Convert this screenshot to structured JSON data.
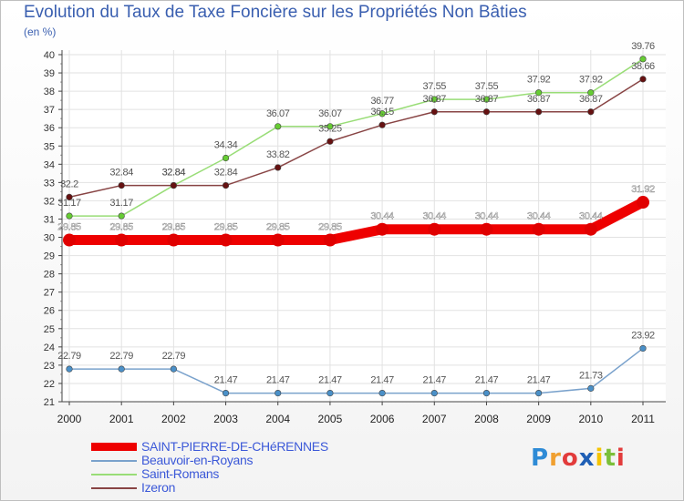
{
  "title": "Evolution du Taux de Taxe Foncière sur les Propriétés Non Bâties",
  "unit": "(en %)",
  "logo": "Proxiti",
  "chart_data": {
    "type": "line",
    "title": "Evolution du Taux de Taxe Foncière sur les Propriétés Non Bâties",
    "ylabel": "(en %)",
    "xlabel": "",
    "x": [
      "2000",
      "2001",
      "2002",
      "2003",
      "2004",
      "2005",
      "2006",
      "2007",
      "2008",
      "2009",
      "2010",
      "2011"
    ],
    "ylim": [
      21,
      40
    ],
    "yticks": [
      21,
      22,
      23,
      24,
      25,
      26,
      27,
      28,
      29,
      30,
      31,
      32,
      33,
      34,
      35,
      36,
      37,
      38,
      39,
      40
    ],
    "grid": true,
    "legend_position": "bottom-left",
    "series": [
      {
        "name": "SAINT-PIERRE-DE-CHéRENNES",
        "color": "#ee0000",
        "marker_color": "#e00000",
        "label_color": "#ffffff",
        "width": "thick",
        "values": [
          29.85,
          29.85,
          29.85,
          29.85,
          29.85,
          29.85,
          30.44,
          30.44,
          30.44,
          30.44,
          30.44,
          31.92
        ],
        "labels": [
          "29.85",
          "29.85",
          "29.85",
          "29.85",
          "29.85",
          "29.85",
          "30.44",
          "30.44",
          "30.44",
          "30.44",
          "30.44",
          "31.92"
        ]
      },
      {
        "name": "Beauvoir-en-Royans",
        "color": "#7aa2cc",
        "marker_color": "#4a90c8",
        "label_color": "#555555",
        "width": "thin",
        "values": [
          22.79,
          22.79,
          22.79,
          21.47,
          21.47,
          21.47,
          21.47,
          21.47,
          21.47,
          21.47,
          21.73,
          23.92
        ],
        "labels": [
          "22.79",
          "22.79",
          "22.79",
          "21.47",
          "21.47",
          "21.47",
          "21.47",
          "21.47",
          "21.47",
          "21.47",
          "21.73",
          "23.92"
        ]
      },
      {
        "name": "Saint-Romans",
        "color": "#99dd77",
        "marker_color": "#66cc33",
        "label_color": "#555555",
        "width": "thin",
        "values": [
          31.17,
          31.17,
          32.84,
          34.34,
          36.07,
          36.07,
          36.77,
          37.55,
          37.55,
          37.92,
          37.92,
          39.76
        ],
        "labels": [
          "31.17",
          "31.17",
          "32.84",
          "34.34",
          "36.07",
          "36.07",
          "36.77",
          "37.55",
          "37.55",
          "37.92",
          "37.92",
          "39.76"
        ]
      },
      {
        "name": "Izeron",
        "color": "#884444",
        "marker_color": "#661111",
        "label_color": "#555555",
        "width": "thin",
        "values": [
          32.2,
          32.84,
          32.84,
          32.84,
          33.82,
          35.25,
          36.15,
          36.87,
          36.87,
          36.87,
          36.87,
          38.66
        ],
        "labels": [
          "32.2",
          "32.84",
          "32.84",
          "32.84",
          "33.82",
          "35.25",
          "36.15",
          "36.87",
          "36.87",
          "36.87",
          "36.87",
          "38.66"
        ]
      }
    ]
  }
}
